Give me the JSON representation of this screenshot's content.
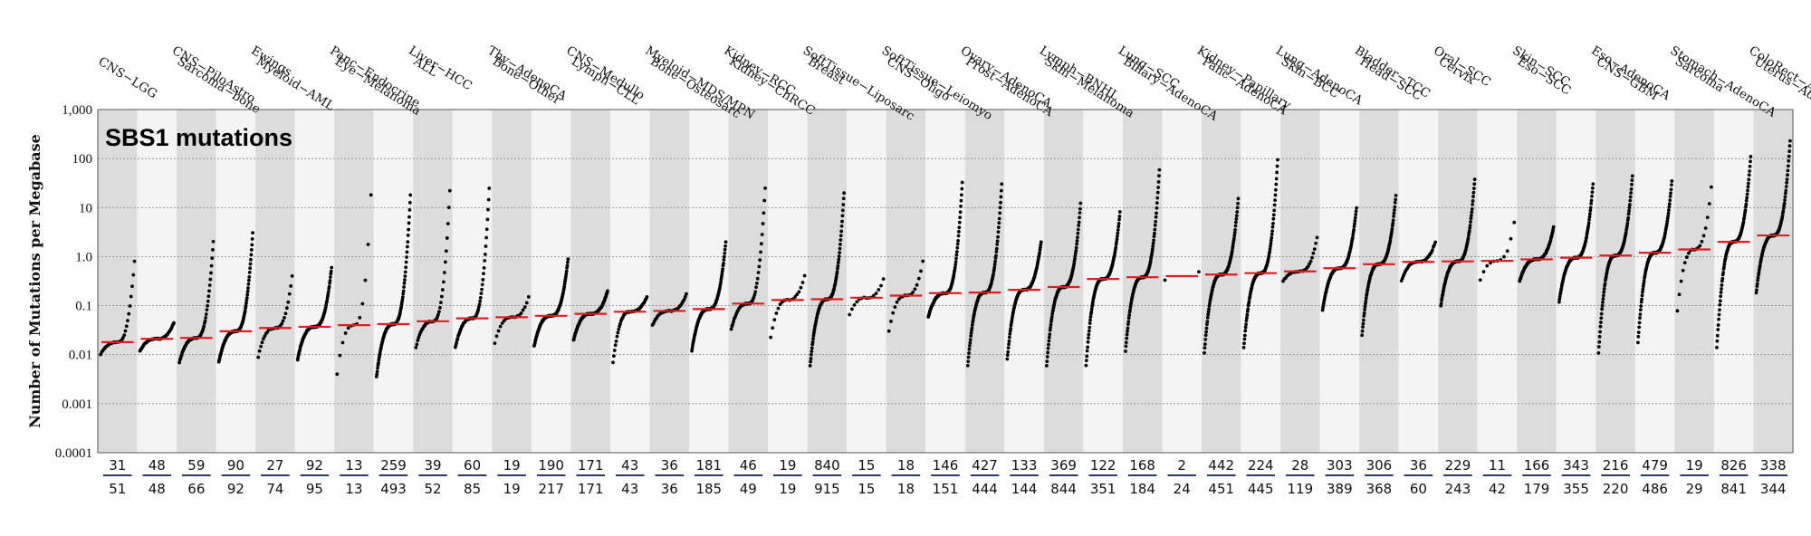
{
  "chart_data": {
    "type": "scatter",
    "title": "SBS1 mutations",
    "ylabel": "Number of Mutations per Megabase",
    "yscale": "log",
    "ylim": [
      0.0001,
      1000
    ],
    "yticks": [
      {
        "value": 0.0001,
        "label": "0.0001"
      },
      {
        "value": 0.001,
        "label": "0.001"
      },
      {
        "value": 0.01,
        "label": "0.01"
      },
      {
        "value": 0.1,
        "label": "0.1"
      },
      {
        "value": 1,
        "label": "1.0"
      },
      {
        "value": 10,
        "label": "10"
      },
      {
        "value": 100,
        "label": "100"
      },
      {
        "value": 1000,
        "label": "1,000"
      }
    ],
    "grid": "horizontal dotted",
    "median_marker_color": "#e41a1c",
    "point_color": "#000000",
    "band_colors": [
      "#dcdcdc",
      "#f4f4f4"
    ],
    "count_underline_color": "#2b3a67",
    "categories": [
      {
        "name": "CNS−LGG",
        "top": 31,
        "bottom": 51,
        "median": 0.018,
        "min": 0.01,
        "max": 0.8
      },
      {
        "name": "CNS−PiloAstro",
        "top": 48,
        "bottom": 48,
        "median": 0.021,
        "min": 0.012,
        "max": 0.045
      },
      {
        "name": "Sarcoma−bone",
        "top": 59,
        "bottom": 66,
        "median": 0.022,
        "min": 0.007,
        "max": 2.0
      },
      {
        "name": "Ewings",
        "top": 90,
        "bottom": 92,
        "median": 0.03,
        "min": 0.007,
        "max": 3.0
      },
      {
        "name": "Myeloid−AML",
        "top": 27,
        "bottom": 74,
        "median": 0.035,
        "min": 0.009,
        "max": 0.4
      },
      {
        "name": "Panc−Endocrine",
        "top": 92,
        "bottom": 95,
        "median": 0.037,
        "min": 0.008,
        "max": 0.6
      },
      {
        "name": "Eye−Melanoma",
        "top": 13,
        "bottom": 13,
        "median": 0.04,
        "min": 0.004,
        "max": 18
      },
      {
        "name": "Liver−HCC",
        "top": 259,
        "bottom": 493,
        "median": 0.042,
        "min": 0.0035,
        "max": 18
      },
      {
        "name": "ALL",
        "top": 39,
        "bottom": 52,
        "median": 0.048,
        "min": 0.014,
        "max": 22
      },
      {
        "name": "Thy−AdenoCA",
        "top": 60,
        "bottom": 85,
        "median": 0.055,
        "min": 0.014,
        "max": 25
      },
      {
        "name": "Bone−Other",
        "top": 19,
        "bottom": 19,
        "median": 0.058,
        "min": 0.017,
        "max": 0.15
      },
      {
        "name": "CNS−Medullo",
        "top": 190,
        "bottom": 217,
        "median": 0.062,
        "min": 0.015,
        "max": 0.9
      },
      {
        "name": "Lymph−CLL",
        "top": 171,
        "bottom": 171,
        "median": 0.068,
        "min": 0.02,
        "max": 0.2
      },
      {
        "name": "Myeloid−MDS/MPN",
        "top": 43,
        "bottom": 43,
        "median": 0.075,
        "min": 0.007,
        "max": 0.15
      },
      {
        "name": "Bone−Osteosarc",
        "top": 36,
        "bottom": 36,
        "median": 0.078,
        "min": 0.04,
        "max": 0.17
      },
      {
        "name": "Kidney−RCC",
        "top": 181,
        "bottom": 185,
        "median": 0.085,
        "min": 0.012,
        "max": 2.0
      },
      {
        "name": "Kidney−ChRCC",
        "top": 46,
        "bottom": 49,
        "median": 0.11,
        "min": 0.033,
        "max": 25
      },
      {
        "name": "SoftTissue−Liposarc",
        "top": 19,
        "bottom": 19,
        "median": 0.13,
        "min": 0.022,
        "max": 0.4
      },
      {
        "name": "Breast",
        "top": 840,
        "bottom": 915,
        "median": 0.135,
        "min": 0.006,
        "max": 20
      },
      {
        "name": "SoftTissue−Leiomyo",
        "top": 15,
        "bottom": 15,
        "median": 0.145,
        "min": 0.065,
        "max": 0.35
      },
      {
        "name": "CNS−Oligo",
        "top": 18,
        "bottom": 18,
        "median": 0.16,
        "min": 0.03,
        "max": 0.8
      },
      {
        "name": "Ovary−AdenoCA",
        "top": 146,
        "bottom": 151,
        "median": 0.18,
        "min": 0.06,
        "max": 32
      },
      {
        "name": "Prost−AdenoCA",
        "top": 427,
        "bottom": 444,
        "median": 0.185,
        "min": 0.006,
        "max": 30
      },
      {
        "name": "Lymph−BNHL",
        "top": 133,
        "bottom": 144,
        "median": 0.21,
        "min": 0.008,
        "max": 2.0
      },
      {
        "name": "Skin−Melanoma",
        "top": 369,
        "bottom": 844,
        "median": 0.24,
        "min": 0.006,
        "max": 12
      },
      {
        "name": "Lung−SCC",
        "top": 122,
        "bottom": 351,
        "median": 0.35,
        "min": 0.006,
        "max": 8
      },
      {
        "name": "Biliary−AdenoCA",
        "top": 168,
        "bottom": 184,
        "median": 0.38,
        "min": 0.012,
        "max": 60
      },
      {
        "name": "Kidney−Papillary",
        "top": 2,
        "bottom": 24,
        "median": 0.4,
        "min": 0.33,
        "max": 0.5
      },
      {
        "name": "Panc−AdenoCA",
        "top": 442,
        "bottom": 451,
        "median": 0.43,
        "min": 0.011,
        "max": 15
      },
      {
        "name": "Lung−AdenoCA",
        "top": 224,
        "bottom": 445,
        "median": 0.46,
        "min": 0.014,
        "max": 95
      },
      {
        "name": "Skin−BCC",
        "top": 28,
        "bottom": 119,
        "median": 0.5,
        "min": 0.32,
        "max": 2.5
      },
      {
        "name": "Bladder−TCC",
        "top": 303,
        "bottom": 389,
        "median": 0.58,
        "min": 0.08,
        "max": 10
      },
      {
        "name": "Head−SCC",
        "top": 306,
        "bottom": 368,
        "median": 0.7,
        "min": 0.025,
        "max": 18
      },
      {
        "name": "Oral−SCC",
        "top": 36,
        "bottom": 60,
        "median": 0.78,
        "min": 0.32,
        "max": 2.0
      },
      {
        "name": "Cervix",
        "top": 229,
        "bottom": 243,
        "median": 0.8,
        "min": 0.1,
        "max": 38
      },
      {
        "name": "Skin−SCC",
        "top": 11,
        "bottom": 42,
        "median": 0.82,
        "min": 0.33,
        "max": 5
      },
      {
        "name": "Eso−SCC",
        "top": 166,
        "bottom": 179,
        "median": 0.88,
        "min": 0.32,
        "max": 4
      },
      {
        "name": "Eso−AdenoCA",
        "top": 343,
        "bottom": 355,
        "median": 0.95,
        "min": 0.12,
        "max": 30
      },
      {
        "name": "CNS−GBM",
        "top": 216,
        "bottom": 220,
        "median": 1.05,
        "min": 0.011,
        "max": 45
      },
      {
        "name": "Stomach−AdenoCA",
        "top": 479,
        "bottom": 486,
        "median": 1.2,
        "min": 0.018,
        "max": 35
      },
      {
        "name": "Sarcoma",
        "top": 19,
        "bottom": 29,
        "median": 1.4,
        "min": 0.08,
        "max": 26
      },
      {
        "name": "ColoRect−AdenoCA",
        "top": 826,
        "bottom": 841,
        "median": 2.0,
        "min": 0.014,
        "max": 110
      },
      {
        "name": "Uterus−AdenoCA",
        "top": 338,
        "bottom": 344,
        "median": 2.7,
        "min": 0.18,
        "max": 230
      }
    ]
  }
}
